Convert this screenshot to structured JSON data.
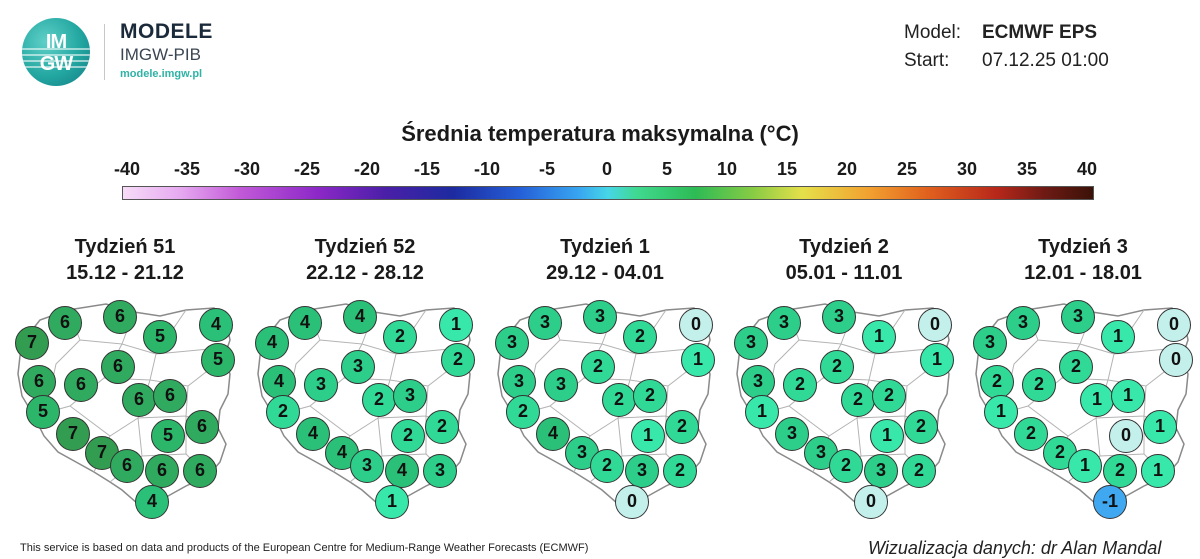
{
  "header": {
    "logo_letters_top": "IM",
    "logo_letters_bottom": "GW",
    "logo_title": "MODELE",
    "logo_subtitle": "IMGW-PIB",
    "logo_url": "modele.imgw.pl",
    "model_label": "Model:",
    "model_value": "ECMWF EPS",
    "start_label": "Start:",
    "start_value": "07.12.25 01:00"
  },
  "scale": {
    "title": "Średnia temperatura maksymalna (°C)",
    "ticks": [
      "-40",
      "-35",
      "-30",
      "-25",
      "-20",
      "-15",
      "-10",
      "-5",
      "0",
      "5",
      "10",
      "15",
      "20",
      "25",
      "30",
      "35",
      "40"
    ],
    "min": -40,
    "max": 40,
    "colors": [
      "#f7dcf7",
      "#c25ad8",
      "#4b1fa8",
      "#2560d8",
      "#46d6e8",
      "#40d98f",
      "#2dbb55",
      "#e5e04a",
      "#e0601e",
      "#3a1208"
    ]
  },
  "weeks": [
    {
      "name": "Tydzień 51",
      "range": "15.12 - 21.12",
      "values": [
        "7",
        "6",
        "6",
        "5",
        "4",
        "6",
        "5",
        "6",
        "6",
        "6",
        "6",
        "5",
        "6",
        "7",
        "5",
        "7",
        "6",
        "6",
        "6",
        "4"
      ]
    },
    {
      "name": "Tydzień 52",
      "range": "22.12 - 28.12",
      "values": [
        "4",
        "4",
        "4",
        "2",
        "1",
        "3",
        "2",
        "4",
        "3",
        "2",
        "3",
        "2",
        "2",
        "4",
        "2",
        "4",
        "3",
        "4",
        "3",
        "1"
      ]
    },
    {
      "name": "Tydzień 1",
      "range": "29.12 - 04.01",
      "values": [
        "3",
        "3",
        "3",
        "2",
        "0",
        "2",
        "1",
        "3",
        "3",
        "2",
        "2",
        "2",
        "2",
        "4",
        "1",
        "3",
        "2",
        "3",
        "2",
        "0"
      ]
    },
    {
      "name": "Tydzień 2",
      "range": "05.01 - 11.01",
      "values": [
        "3",
        "3",
        "3",
        "1",
        "0",
        "2",
        "1",
        "3",
        "2",
        "2",
        "2",
        "1",
        "2",
        "3",
        "1",
        "3",
        "2",
        "3",
        "2",
        "0"
      ]
    },
    {
      "name": "Tydzień 3",
      "range": "12.01 - 18.01",
      "values": [
        "3",
        "3",
        "3",
        "1",
        "0",
        "2",
        "0",
        "2",
        "2",
        "1",
        "1",
        "1",
        "1",
        "2",
        "0",
        "2",
        "1",
        "2",
        "1",
        "-1"
      ]
    }
  ],
  "footer": {
    "credit_left": "This service is based on data and products of the European Centre for Medium-Range Weather Forecasts (ECMWF)",
    "credit_right": "Wizualizacja danych: dr Alan Mandal"
  }
}
